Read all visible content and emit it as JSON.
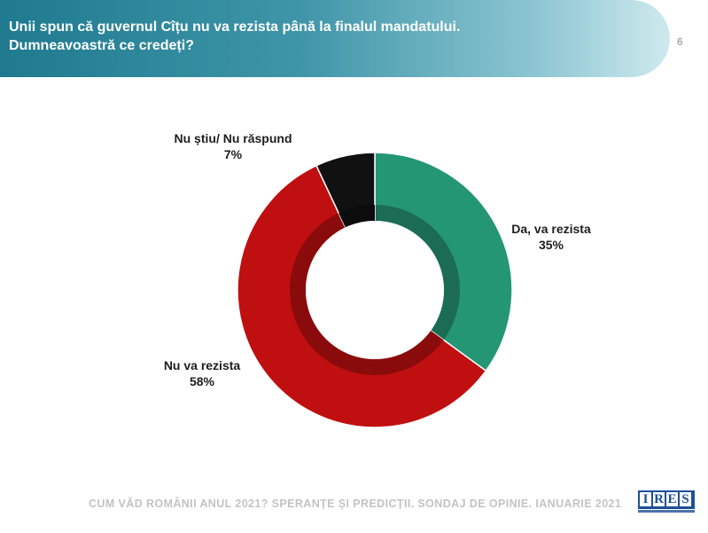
{
  "header": {
    "title_line1": "Unii spun că guvernul Cîțu nu va rezista până la finalul mandatului.",
    "title_line2": "Dumneavoastră ce credeți?",
    "page_number": "6"
  },
  "footer": {
    "text": "CUM VĂD ROMÂNII ANUL 2021? SPERANȚE ȘI PREDICȚII. SONDAJ DE OPINIE. IANUARIE 2021",
    "logo_letters": [
      "I",
      "R",
      "E",
      "S"
    ]
  },
  "chart_data": {
    "type": "pie",
    "variant": "donut",
    "categories": [
      "Da, va rezista",
      "Nu va rezista",
      "Nu știu/ Nu răspund"
    ],
    "values": [
      35,
      58,
      7
    ],
    "value_labels": [
      "35%",
      "58%",
      "7%"
    ],
    "colors": [
      "#259673",
      "#c00f10",
      "#111111"
    ],
    "start": "top, clockwise",
    "legend": "none (data labels beside slices)"
  }
}
